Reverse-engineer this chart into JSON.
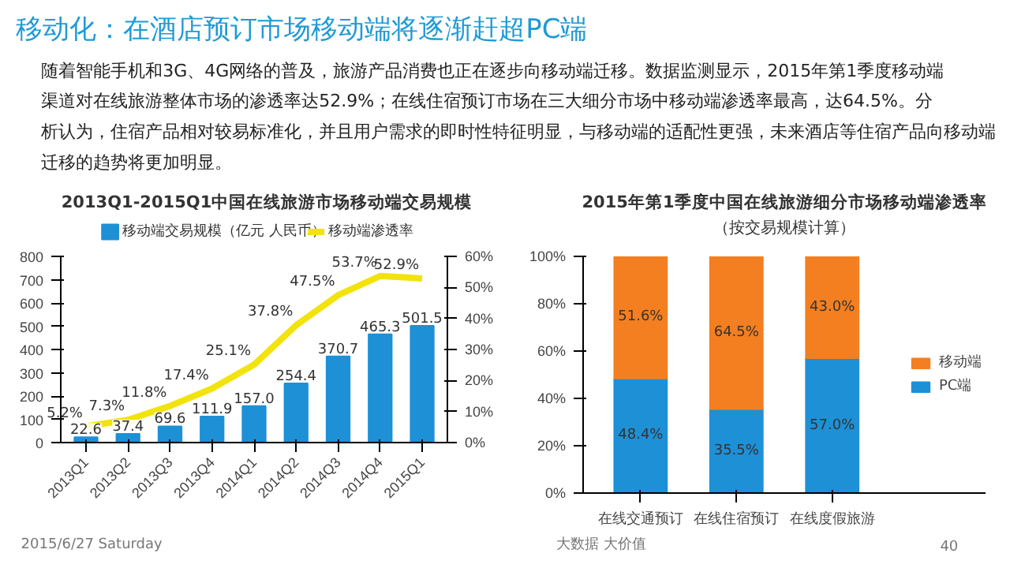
{
  "chart_data": [
    {
      "type": "other",
      "title": "移动化：在酒店预订市场移动端将逐渐赶超PC端",
      "annotations": [
        "随着智能手机和3G、4G网络的普及，旅游产品消费也正在逐步向移动端迁移。数据监测显示，2015年第1季度移动端渠道对在线旅游整体市场的渗透率达52.9%；在线住宿预订市场在三大细分市场中移动端渗透率最高，达64.5%。分析认为，住宿产品相对较易标准化，并且用户需求的即时性特征明显，与移动端的适配性更强，未来酒店等住宿产品向移动端迁移的趋势将更加明显。",
        "2015/6/27 Saturday",
        "大数据  大价值",
        "40"
      ]
    },
    {
      "type": "bar",
      "title": "2013Q1-2015Q1中国在线旅游市场移动端交易规模",
      "categories": [
        "2013Q1",
        "2013Q2",
        "2013Q3",
        "2013Q4",
        "2014Q1",
        "2014Q2",
        "2014Q3",
        "2014Q4",
        "2015Q1"
      ],
      "series": [
        {
          "name": "移动端交易规模（亿元 人民币）",
          "color": "#1e90d6",
          "values": [
            22.6,
            37.4,
            69.6,
            111.9,
            157.0,
            254.4,
            370.7,
            465.3,
            501.5
          ],
          "value_labels": [
            "22.6",
            "37.4",
            "69.6",
            "111.9",
            "157.0",
            "254.4",
            "370.7",
            "465.3",
            "501.5"
          ]
        },
        {
          "name": "移动端渗透率",
          "type": "line",
          "axis": "y2",
          "color": "#f2e30c",
          "values": [
            5.2,
            7.3,
            11.8,
            17.4,
            25.1,
            37.8,
            47.5,
            53.7,
            52.9
          ],
          "value_labels": [
            "5.2%",
            "7.3%",
            "11.8%",
            "17.4%",
            "25.1%",
            "37.8%",
            "47.5%",
            "53.7%",
            "52.9%"
          ]
        }
      ],
      "ylim": [
        0,
        800
      ],
      "yticks": [
        0,
        100,
        200,
        300,
        400,
        500,
        600,
        700,
        800
      ],
      "y2lim": [
        0,
        60
      ],
      "y2ticks": [
        {
          "value": 0,
          "label": "0%"
        },
        {
          "value": 10,
          "label": "10%"
        },
        {
          "value": 20,
          "label": "20%"
        },
        {
          "value": 30,
          "label": "30%"
        },
        {
          "value": 40,
          "label": "40%"
        },
        {
          "value": 50,
          "label": "50%"
        },
        {
          "value": 60,
          "label": "60%"
        }
      ],
      "legend": "top"
    },
    {
      "type": "bar",
      "stacked": true,
      "title": "2015年第1季度中国在线旅游细分市场移动端渗透率",
      "subtitle": "（按交易规模计算）",
      "categories": [
        "在线交通预订",
        "在线住宿预订",
        "在线度假旅游"
      ],
      "series": [
        {
          "name": "PC端",
          "color": "#1e90d6",
          "values": [
            48.4,
            35.5,
            57.0
          ],
          "value_labels": [
            "48.4%",
            "35.5%",
            "57.0%"
          ]
        },
        {
          "name": "移动端",
          "color": "#f47f20",
          "values": [
            51.6,
            64.5,
            43.0
          ],
          "value_labels": [
            "51.6%",
            "64.5%",
            "43.0%"
          ]
        }
      ],
      "ylim": [
        0,
        100
      ],
      "yticks": [
        {
          "value": 0,
          "label": "0%"
        },
        {
          "value": 20,
          "label": "20%"
        },
        {
          "value": 40,
          "label": "40%"
        },
        {
          "value": 60,
          "label": "60%"
        },
        {
          "value": 80,
          "label": "80%"
        },
        {
          "value": 100,
          "label": "100%"
        }
      ],
      "legend": "right"
    }
  ]
}
